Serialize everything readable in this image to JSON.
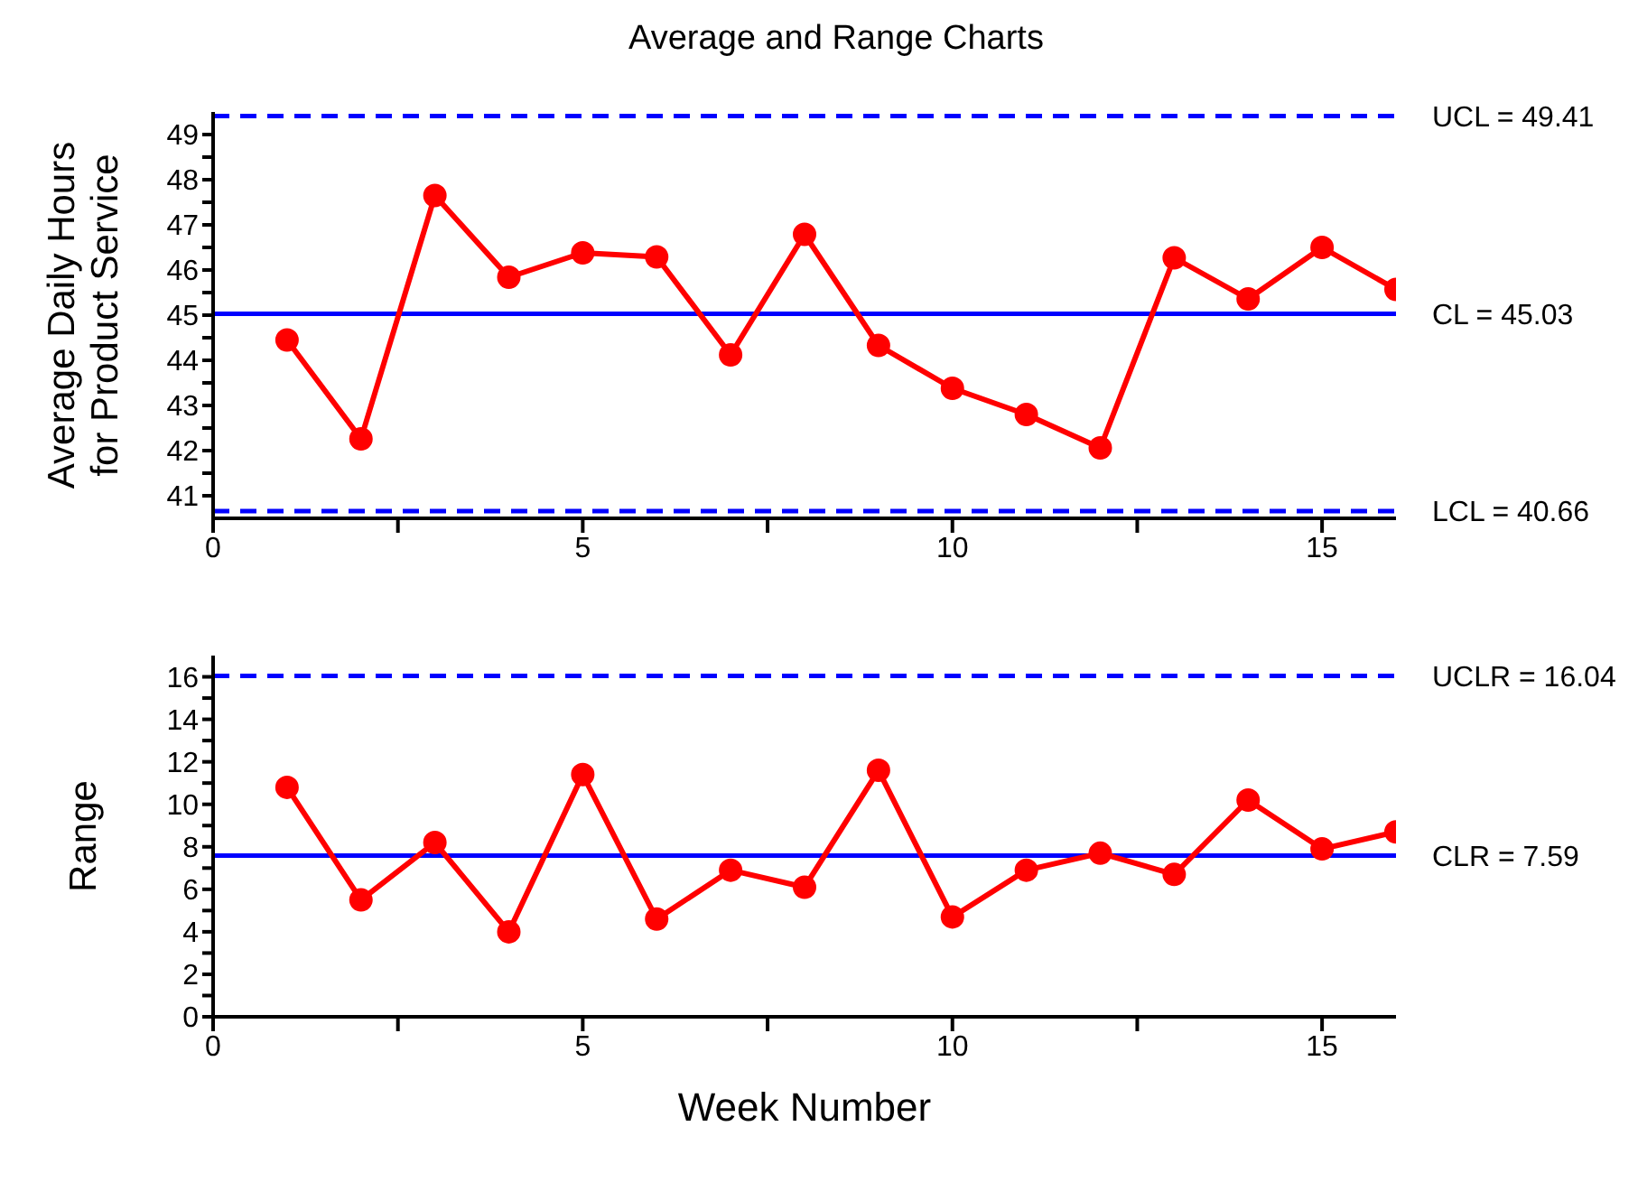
{
  "chart_data": [
    {
      "type": "line",
      "title": "Average and Range Charts",
      "ylabel": "Average Daily Hours\nfor Product Service",
      "x": [
        1,
        2,
        3,
        4,
        5,
        6,
        7,
        8,
        9,
        10,
        11,
        12,
        13,
        14,
        15,
        16
      ],
      "series": [
        {
          "color": "#ff0000",
          "values": [
            44.45,
            42.26,
            47.65,
            45.84,
            46.38,
            46.29,
            44.12,
            46.79,
            44.33,
            43.38,
            42.8,
            42.06,
            46.27,
            45.36,
            46.5,
            45.57
          ]
        }
      ],
      "xlim": [
        0,
        16
      ],
      "xticks": [
        0,
        {
          "value": 2.5,
          "label": null
        },
        5,
        {
          "value": 7.5,
          "label": null
        },
        10,
        {
          "value": 12.5,
          "label": null
        },
        15
      ],
      "ylim": [
        40.5,
        49.5
      ],
      "yticks": [
        41,
        {
          "value": 41.5,
          "label": null
        },
        42,
        {
          "value": 42.5,
          "label": null
        },
        43,
        {
          "value": 43.5,
          "label": null
        },
        44,
        {
          "value": 44.5,
          "label": null
        },
        45,
        {
          "value": 45.5,
          "label": null
        },
        46,
        {
          "value": 46.5,
          "label": null
        },
        47,
        {
          "value": 47.5,
          "label": null
        },
        48,
        {
          "value": 48.5,
          "label": null
        },
        49
      ],
      "ref_lines": [
        {
          "axis": "y",
          "value": 49.41,
          "label": "UCL = 49.41",
          "color": "#0000ff",
          "line_style": "dashed"
        },
        {
          "axis": "y",
          "value": 45.03,
          "label": "CL = 45.03",
          "color": "#0000ff",
          "line_style": "solid"
        },
        {
          "axis": "y",
          "value": 40.66,
          "label": "LCL = 40.66",
          "color": "#0000ff",
          "line_style": "dashed"
        }
      ],
      "marker": "circle",
      "line_style": "solid",
      "grid": false,
      "legend": false
    },
    {
      "type": "line",
      "ylabel": "Range",
      "xlabel": "Week  Number",
      "x": [
        1,
        2,
        3,
        4,
        5,
        6,
        7,
        8,
        9,
        10,
        11,
        12,
        13,
        14,
        15,
        16
      ],
      "series": [
        {
          "color": "#ff0000",
          "values": [
            10.8,
            5.5,
            8.2,
            4.0,
            11.4,
            4.6,
            6.9,
            6.1,
            11.6,
            4.7,
            6.9,
            7.7,
            6.7,
            10.2,
            7.9,
            8.7
          ]
        }
      ],
      "xlim": [
        0,
        16
      ],
      "xticks": [
        0,
        {
          "value": 2.5,
          "label": null
        },
        5,
        {
          "value": 7.5,
          "label": null
        },
        10,
        {
          "value": 12.5,
          "label": null
        },
        15
      ],
      "ylim": [
        0,
        17
      ],
      "yticks": [
        0,
        {
          "value": 1,
          "label": null
        },
        2,
        {
          "value": 3,
          "label": null
        },
        4,
        {
          "value": 5,
          "label": null
        },
        6,
        {
          "value": 7,
          "label": null
        },
        8,
        {
          "value": 9,
          "label": null
        },
        10,
        {
          "value": 11,
          "label": null
        },
        12,
        {
          "value": 13,
          "label": null
        },
        14,
        {
          "value": 15,
          "label": null
        },
        16
      ],
      "ref_lines": [
        {
          "axis": "y",
          "value": 16.04,
          "label": "UCLR = 16.04",
          "color": "#0000ff",
          "line_style": "dashed"
        },
        {
          "axis": "y",
          "value": 7.59,
          "label": "CLR = 7.59",
          "color": "#0000ff",
          "line_style": "solid"
        }
      ],
      "marker": "circle",
      "line_style": "solid",
      "grid": false,
      "legend": false
    }
  ]
}
